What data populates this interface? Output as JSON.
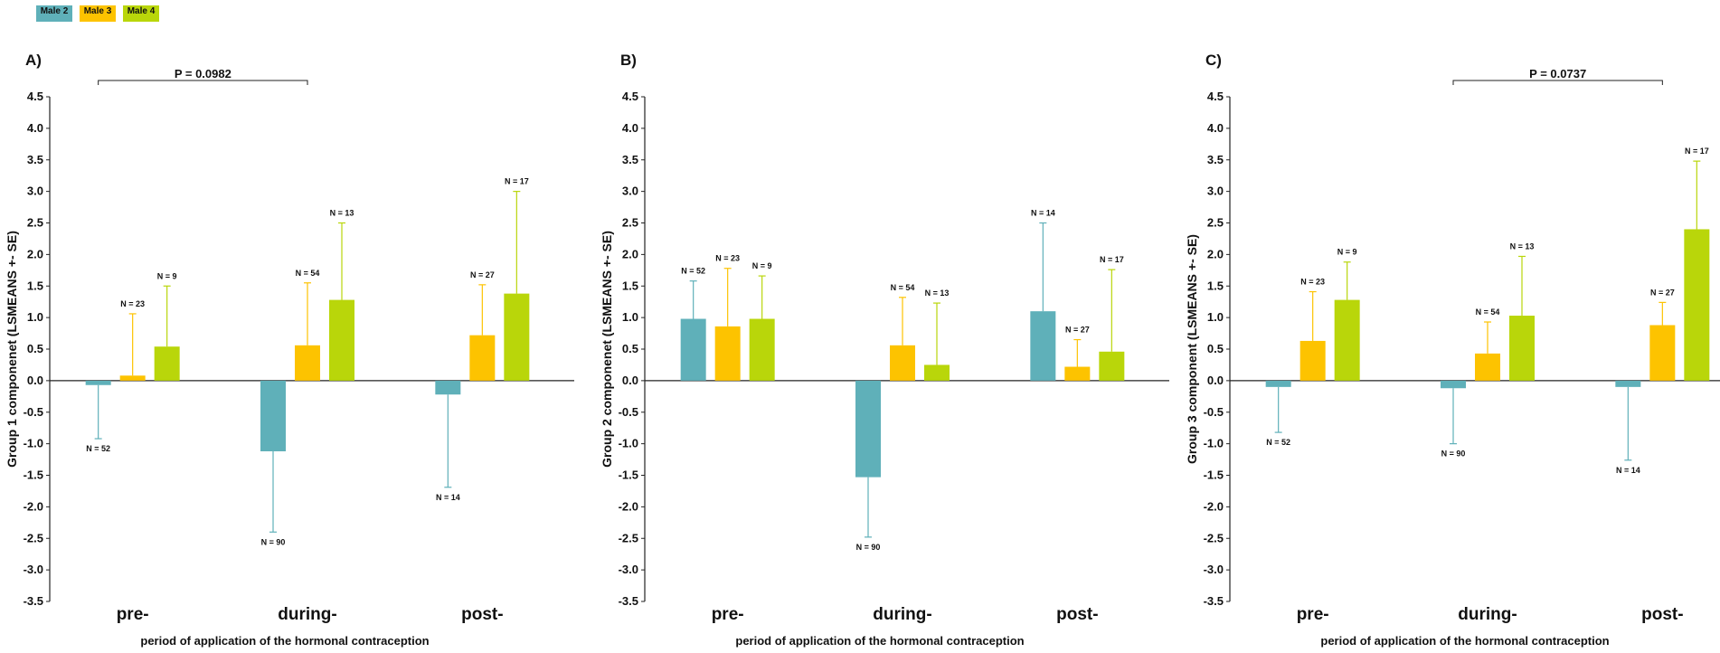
{
  "legend": [
    {
      "label": "Male 2",
      "color": "#5fb0b9"
    },
    {
      "label": "Male 3",
      "color": "#fdc300"
    },
    {
      "label": "Male 4",
      "color": "#b9d60a"
    }
  ],
  "chart_data": [
    {
      "type": "bar",
      "panel_label": "A)",
      "categories": [
        "pre-",
        "during-",
        "post-"
      ],
      "xlabel": "period of application of the hormonal contraception",
      "ylabel": "Group 1 componenet (LSMEANS +- SE)",
      "ylim": [
        -3.5,
        4.5
      ],
      "yticks": [
        "4.5",
        "4.0",
        "3.5",
        "3.0",
        "2.5",
        "2.0",
        "1.5",
        "1.0",
        "0.5",
        "0.0",
        "-0.5",
        "-1.0",
        "-1.5",
        "-2.0",
        "-2.5",
        "-3.0",
        "-3.5"
      ],
      "series": [
        {
          "name": "Male 2",
          "values": [
            -0.07,
            -1.12,
            -0.22
          ],
          "se": [
            0.85,
            1.28,
            1.47
          ],
          "n": [
            "N = 52",
            "N = 90",
            "N = 14"
          ]
        },
        {
          "name": "Male 3",
          "values": [
            0.08,
            0.56,
            0.72
          ],
          "se": [
            0.98,
            0.99,
            0.8
          ],
          "n": [
            "N = 23",
            "N = 54",
            "N = 27"
          ]
        },
        {
          "name": "Male 4",
          "values": [
            0.54,
            1.28,
            1.38
          ],
          "se": [
            0.96,
            1.22,
            1.62
          ],
          "n": [
            "N = 9",
            "N = 13",
            "N = 17"
          ]
        }
      ],
      "annotation": {
        "text": "P = 0.0982",
        "from_category": 0,
        "to_category": 1
      }
    },
    {
      "type": "bar",
      "panel_label": "B)",
      "categories": [
        "pre-",
        "during-",
        "post-"
      ],
      "xlabel": "period of application of the hormonal contraception",
      "ylabel": "Group 2 componenet (LSMEANS +- SE)",
      "ylim": [
        -3.5,
        4.5
      ],
      "yticks": [
        "4.5",
        "4.0",
        "3.5",
        "3.0",
        "2.5",
        "2.0",
        "1.5",
        "1.0",
        "0.5",
        "0.0",
        "-0.5",
        "-1.0",
        "-1.5",
        "-2.0",
        "-2.5",
        "-3.0",
        "-3.5"
      ],
      "series": [
        {
          "name": "Male 2",
          "values": [
            0.98,
            -1.53,
            1.1
          ],
          "se": [
            0.6,
            0.95,
            1.4
          ],
          "n": [
            "N = 52",
            "N = 90",
            "N = 14"
          ]
        },
        {
          "name": "Male 3",
          "values": [
            0.86,
            0.56,
            0.22
          ],
          "se": [
            0.92,
            0.76,
            0.43
          ],
          "n": [
            "N = 23",
            "N = 54",
            "N = 27"
          ]
        },
        {
          "name": "Male 4",
          "values": [
            0.98,
            0.25,
            0.46
          ],
          "se": [
            0.68,
            0.98,
            1.3
          ],
          "n": [
            "N = 9",
            "N = 13",
            "N = 17"
          ]
        }
      ],
      "annotation": null
    },
    {
      "type": "bar",
      "panel_label": "C)",
      "categories": [
        "pre-",
        "during-",
        "post-"
      ],
      "xlabel": "period of application of the hormonal contraception",
      "ylabel": "Group 3 component (LSMEANS +- SE)",
      "ylim": [
        -3.5,
        4.5
      ],
      "yticks": [
        "4.5",
        "4.0",
        "3.5",
        "3.0",
        "2.5",
        "2.0",
        "1.5",
        "1.0",
        "0.5",
        "0.0",
        "-0.5",
        "-1.0",
        "-1.5",
        "-2.0",
        "-2.5",
        "-3.0",
        "-3.5"
      ],
      "series": [
        {
          "name": "Male 2",
          "values": [
            -0.1,
            -0.12,
            -0.1
          ],
          "se": [
            0.72,
            0.88,
            1.16
          ],
          "n": [
            "N = 52",
            "N = 90",
            "N = 14"
          ]
        },
        {
          "name": "Male 3",
          "values": [
            0.63,
            0.43,
            0.88
          ],
          "se": [
            0.78,
            0.5,
            0.36
          ],
          "n": [
            "N = 23",
            "N = 54",
            "N = 27"
          ]
        },
        {
          "name": "Male 4",
          "values": [
            1.28,
            1.03,
            2.4
          ],
          "se": [
            0.6,
            0.94,
            1.08
          ],
          "n": [
            "N = 9",
            "N = 13",
            "N = 17"
          ]
        }
      ],
      "annotation": {
        "text": "P = 0.0737",
        "from_category": 1,
        "to_category": 2
      }
    }
  ]
}
